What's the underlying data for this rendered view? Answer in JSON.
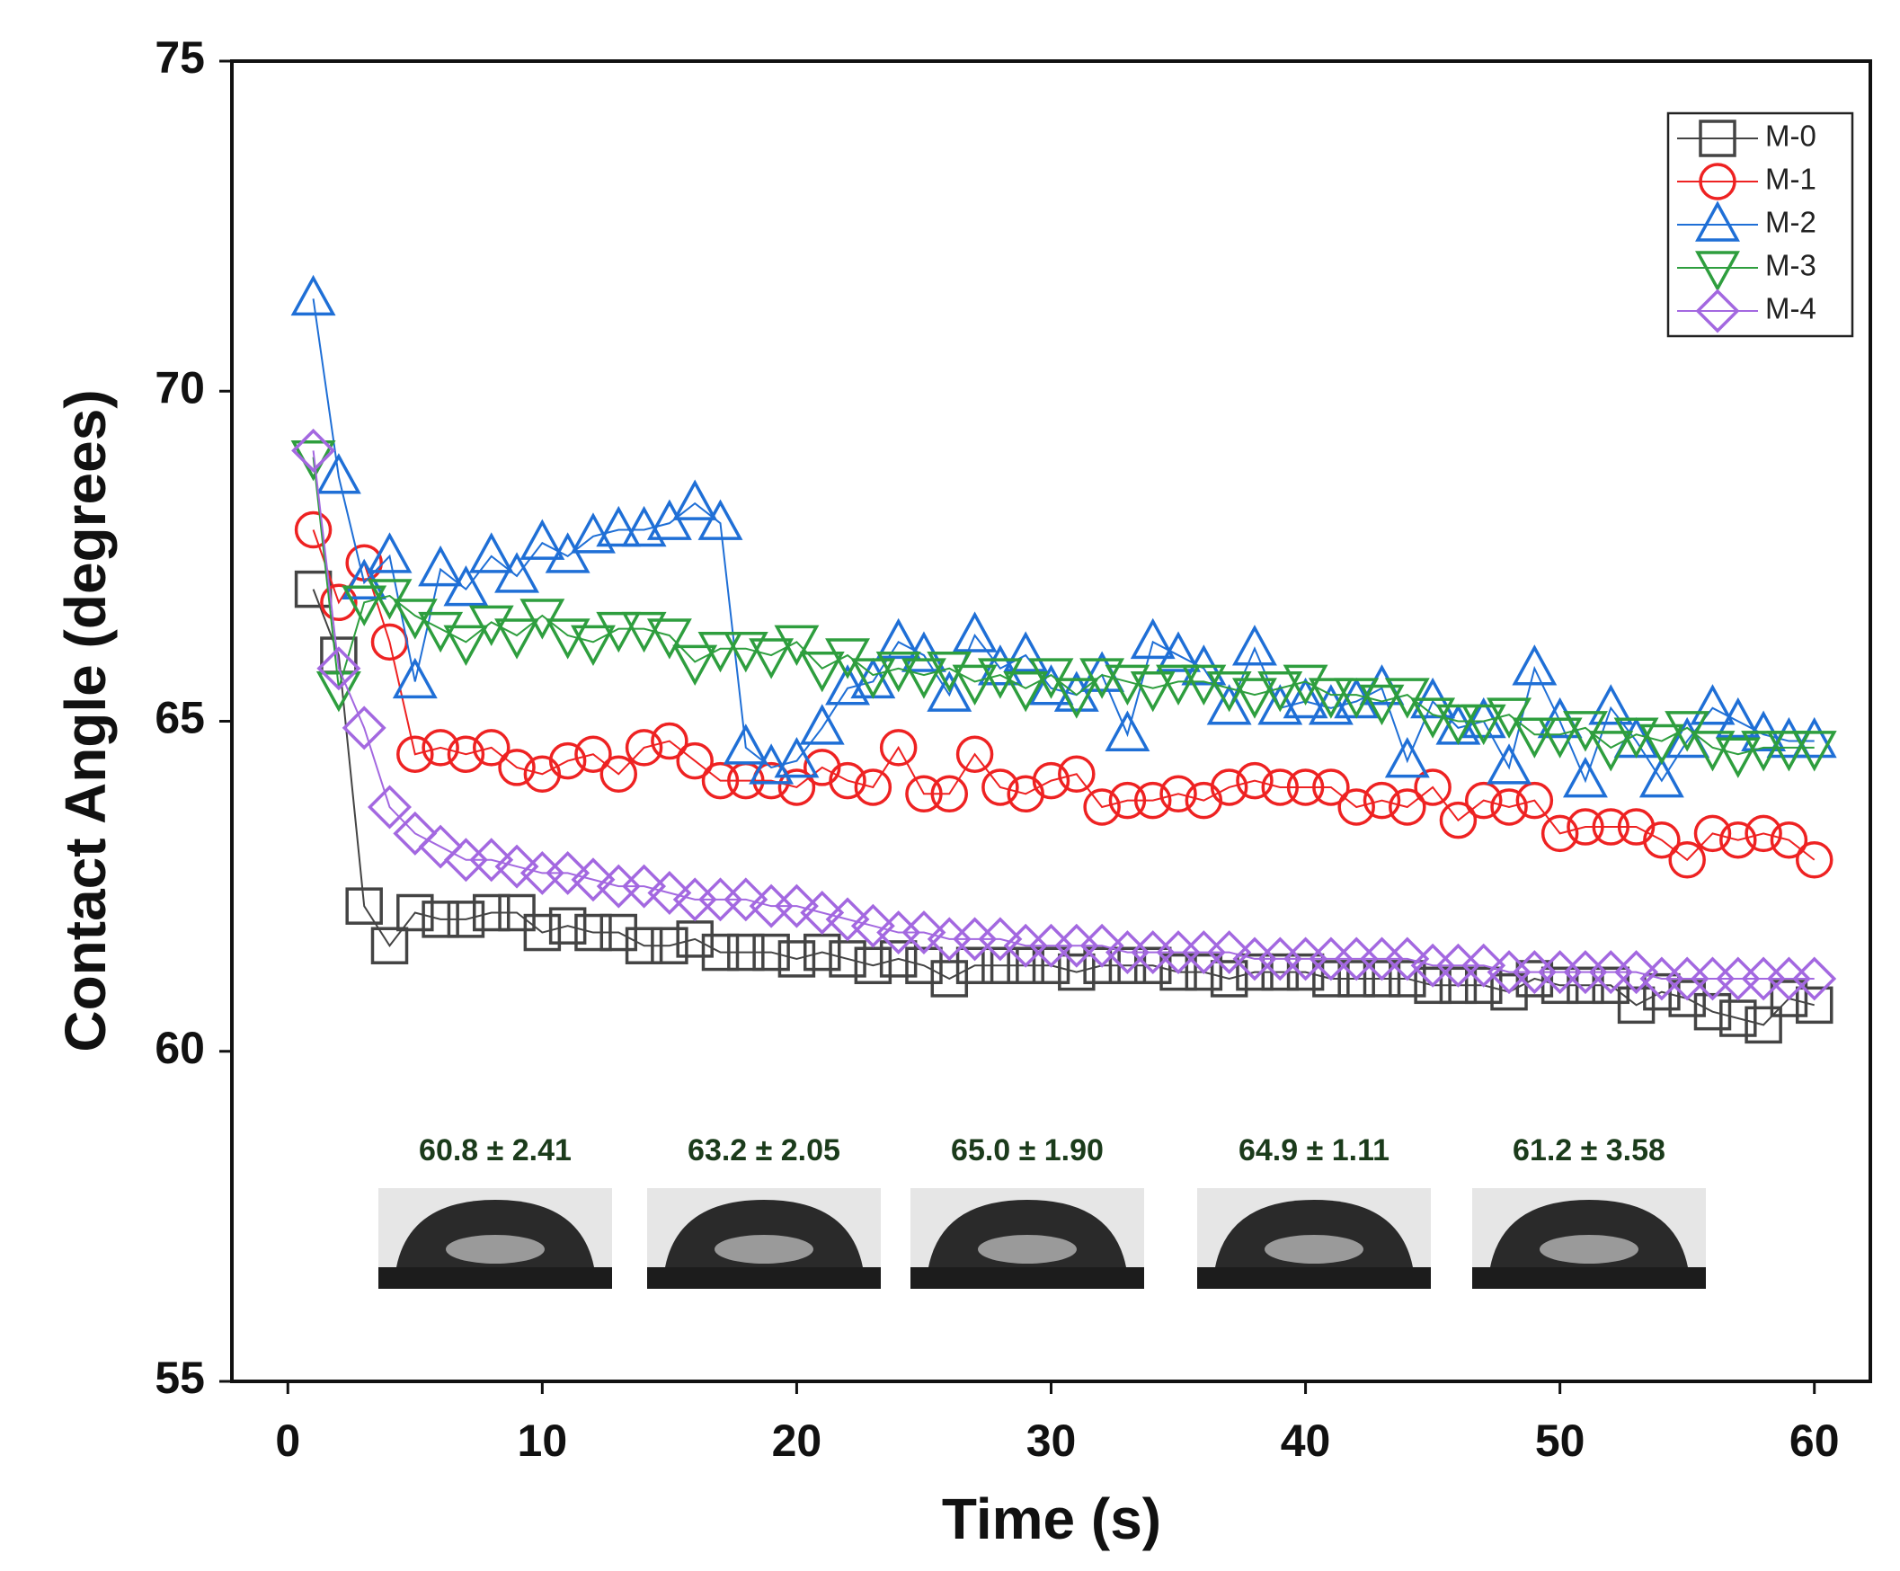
{
  "chart_data": {
    "type": "line",
    "xlabel": "Time (s)",
    "ylabel": "Contact Angle (degrees)",
    "x": [
      1,
      2,
      3,
      4,
      5,
      6,
      7,
      8,
      9,
      10,
      11,
      12,
      13,
      14,
      15,
      16,
      17,
      18,
      19,
      20,
      21,
      22,
      23,
      24,
      25,
      26,
      27,
      28,
      29,
      30,
      31,
      32,
      33,
      34,
      35,
      36,
      37,
      38,
      39,
      40,
      41,
      42,
      43,
      44,
      45,
      46,
      47,
      48,
      49,
      50,
      51,
      52,
      53,
      54,
      55,
      56,
      57,
      58,
      59,
      60
    ],
    "xlim": [
      -2.2,
      62.2
    ],
    "xticks": [
      0,
      10,
      20,
      30,
      40,
      50,
      60
    ],
    "ylim": [
      55,
      75
    ],
    "yticks": [
      55,
      60,
      65,
      70,
      75
    ],
    "legend": "upper right",
    "series": [
      {
        "name": "M-0",
        "color": "#444444",
        "marker": "square",
        "values": [
          67.0,
          66.0,
          62.2,
          61.6,
          62.1,
          62.0,
          62.0,
          62.1,
          62.1,
          61.8,
          61.9,
          61.8,
          61.8,
          61.6,
          61.6,
          61.7,
          61.5,
          61.5,
          61.5,
          61.4,
          61.5,
          61.4,
          61.3,
          61.4,
          61.3,
          61.1,
          61.3,
          61.3,
          61.3,
          61.3,
          61.2,
          61.3,
          61.3,
          61.3,
          61.2,
          61.2,
          61.1,
          61.2,
          61.2,
          61.2,
          61.1,
          61.1,
          61.1,
          61.1,
          61.0,
          61.0,
          61.0,
          60.9,
          61.1,
          61.0,
          61.0,
          61.0,
          60.7,
          60.9,
          60.8,
          60.6,
          60.5,
          60.4,
          60.8,
          60.7
        ]
      },
      {
        "name": "M-1",
        "color": "#ee2222",
        "marker": "circle",
        "values": [
          67.9,
          66.8,
          67.4,
          66.2,
          64.5,
          64.6,
          64.5,
          64.6,
          64.3,
          64.2,
          64.4,
          64.5,
          64.2,
          64.6,
          64.7,
          64.4,
          64.1,
          64.1,
          64.1,
          64.0,
          64.3,
          64.1,
          64.0,
          64.6,
          63.9,
          63.9,
          64.5,
          64.0,
          63.9,
          64.1,
          64.2,
          63.7,
          63.8,
          63.8,
          63.9,
          63.8,
          64.0,
          64.1,
          64.0,
          64.0,
          64.0,
          63.7,
          63.8,
          63.7,
          64.0,
          63.5,
          63.8,
          63.7,
          63.8,
          63.3,
          63.4,
          63.4,
          63.4,
          63.2,
          62.9,
          63.3,
          63.2,
          63.3,
          63.2,
          62.9
        ]
      },
      {
        "name": "M-2",
        "color": "#1f6fd6",
        "marker": "triangle-up",
        "values": [
          71.4,
          68.7,
          67.1,
          67.5,
          65.6,
          67.3,
          67.0,
          67.5,
          67.2,
          67.7,
          67.5,
          67.8,
          67.9,
          67.9,
          68.0,
          68.3,
          68.0,
          64.6,
          64.3,
          64.4,
          64.9,
          65.5,
          65.6,
          66.2,
          66.0,
          65.4,
          66.3,
          65.8,
          66.0,
          65.5,
          65.4,
          65.7,
          64.8,
          66.2,
          66.0,
          65.8,
          65.2,
          66.1,
          65.2,
          65.3,
          65.2,
          65.3,
          65.5,
          64.4,
          65.3,
          64.9,
          65.0,
          64.3,
          65.8,
          65.0,
          64.1,
          65.2,
          64.7,
          64.1,
          64.7,
          65.2,
          65.0,
          64.8,
          64.7,
          64.7
        ]
      },
      {
        "name": "M-3",
        "color": "#2e9e3e",
        "marker": "triangle-down",
        "values": [
          69.0,
          65.5,
          66.8,
          66.9,
          66.6,
          66.4,
          66.2,
          66.5,
          66.3,
          66.6,
          66.3,
          66.2,
          66.4,
          66.4,
          66.3,
          65.9,
          66.1,
          66.1,
          66.0,
          66.2,
          65.8,
          66.0,
          65.7,
          65.8,
          65.7,
          65.8,
          65.6,
          65.7,
          65.5,
          65.7,
          65.4,
          65.7,
          65.6,
          65.5,
          65.6,
          65.6,
          65.5,
          65.4,
          65.5,
          65.6,
          65.4,
          65.4,
          65.3,
          65.4,
          65.1,
          65.0,
          65.0,
          65.1,
          64.8,
          64.8,
          64.9,
          64.6,
          64.8,
          64.7,
          64.9,
          64.6,
          64.5,
          64.6,
          64.6,
          64.6
        ]
      },
      {
        "name": "M-4",
        "color": "#a368e0",
        "marker": "diamond",
        "values": [
          69.1,
          65.8,
          64.9,
          63.7,
          63.3,
          63.1,
          62.9,
          62.9,
          62.8,
          62.7,
          62.7,
          62.6,
          62.5,
          62.5,
          62.4,
          62.3,
          62.3,
          62.3,
          62.2,
          62.2,
          62.1,
          62.0,
          61.9,
          61.8,
          61.8,
          61.7,
          61.7,
          61.7,
          61.6,
          61.6,
          61.6,
          61.6,
          61.5,
          61.5,
          61.5,
          61.5,
          61.5,
          61.4,
          61.4,
          61.4,
          61.4,
          61.4,
          61.4,
          61.4,
          61.3,
          61.3,
          61.3,
          61.2,
          61.2,
          61.2,
          61.2,
          61.2,
          61.2,
          61.1,
          61.1,
          61.1,
          61.1,
          61.1,
          61.1,
          61.1
        ]
      }
    ],
    "annotations": [
      "60.8 ± 2.41",
      "63.2 ± 2.05",
      "65.0 ± 1.90",
      "64.9 ± 1.11",
      "61.2 ± 3.58"
    ]
  }
}
